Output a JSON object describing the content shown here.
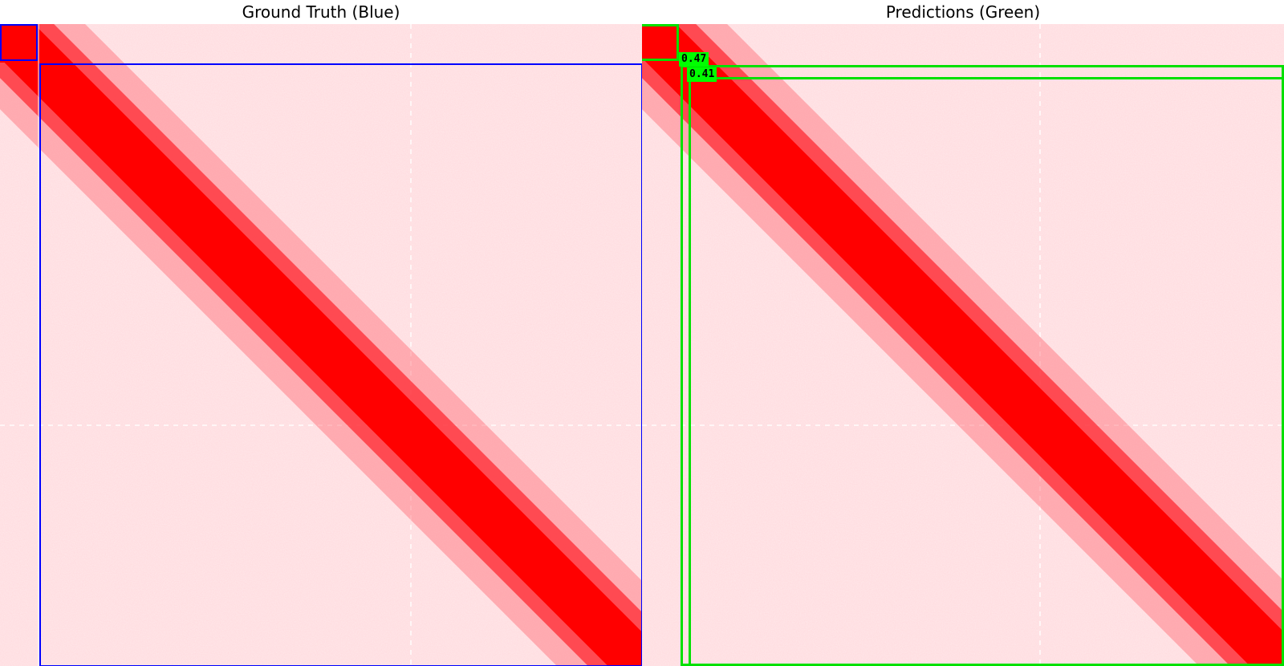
{
  "titles": {
    "left": "Ground Truth (Blue)",
    "right": "Predictions (Green)"
  },
  "colors": {
    "heatmap_background": "#ffe6e8",
    "heatmap_high": "#ff0000",
    "ground_truth_box": "#0000ff",
    "prediction_box": "#00e000",
    "score_label_background": "#00ff00"
  },
  "heatmap": {
    "type": "Hi-C contact map",
    "note_visible": false
  },
  "predictions": [
    {
      "score_label": "0.47"
    },
    {
      "score_label": "0.41"
    }
  ]
}
